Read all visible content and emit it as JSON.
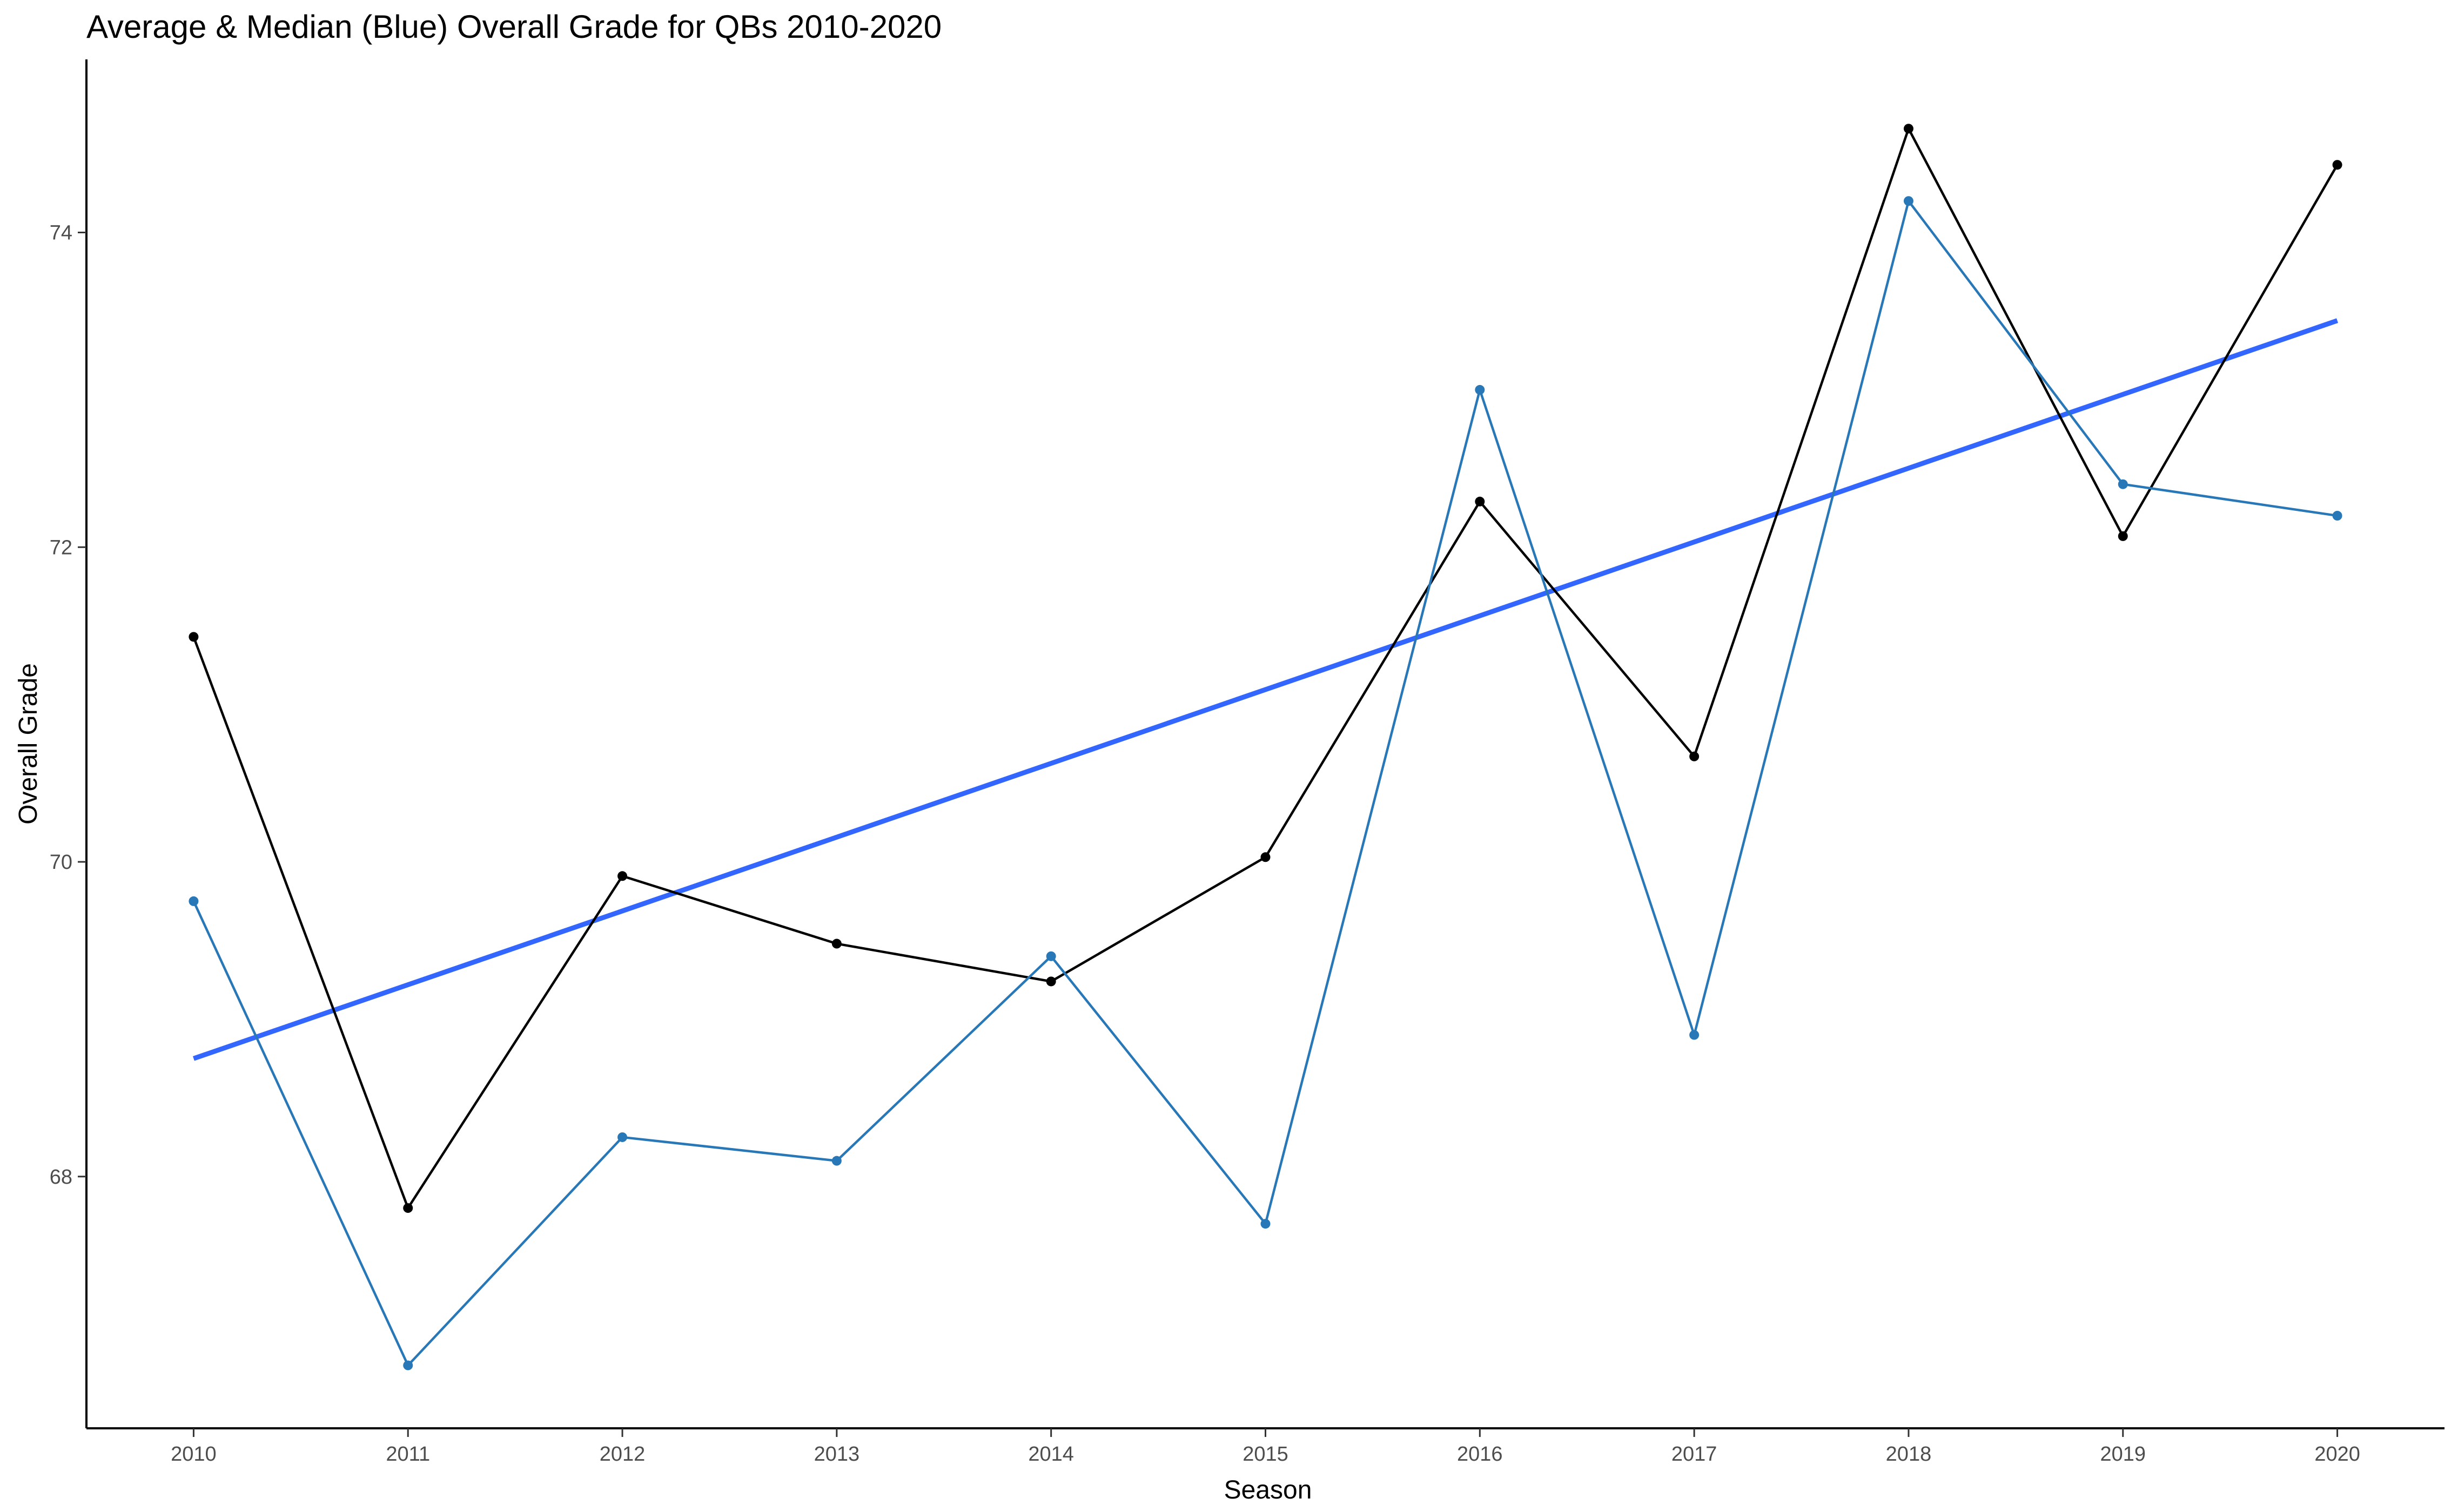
{
  "chart_data": {
    "type": "line",
    "title": "Average & Median (Blue) Overall Grade for QBs 2010-2020",
    "xlabel": "Season",
    "ylabel": "Overall Grade",
    "x": [
      2010,
      2011,
      2012,
      2013,
      2014,
      2015,
      2016,
      2017,
      2018,
      2019,
      2020
    ],
    "xlim": [
      2009.5,
      2020.5
    ],
    "ylim": [
      66.4,
      75.1
    ],
    "yticks": [
      68,
      70,
      72,
      74
    ],
    "grid": false,
    "legend": "none",
    "series": [
      {
        "color": "#000000",
        "values": [
          71.43,
          67.8,
          69.91,
          69.48,
          69.24,
          70.03,
          72.29,
          70.67,
          74.66,
          72.07,
          74.43
        ]
      },
      {
        "color": "#2878B8",
        "values": [
          69.75,
          66.8,
          68.25,
          68.1,
          69.4,
          67.7,
          73.0,
          68.9,
          74.2,
          72.4,
          72.2
        ]
      }
    ],
    "trend_line": {
      "color": "#3366FF",
      "x": [
        2010,
        2020
      ],
      "values": [
        68.75,
        73.44
      ]
    }
  }
}
